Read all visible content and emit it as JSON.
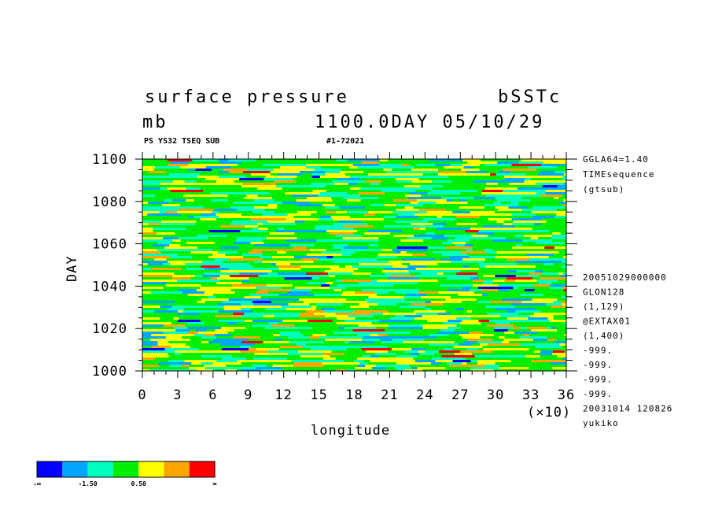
{
  "header": {
    "title_left": "surface pressure",
    "title_right": "bSSTc",
    "units": "mb",
    "date_label": "1100.0DAY 05/10/29",
    "sub_left": "PS YS32 TSEQ SUB",
    "sub_right": "#1-72021"
  },
  "side_info": {
    "top": [
      "GGLA64=1.40",
      "TIMEsequence",
      "(gtsub)"
    ],
    "bottom": [
      "20051029000000",
      "GLON128",
      "(1,129)",
      "@EXTAX01",
      "(1,400)",
      "-999.",
      "-999.",
      "-999.",
      "-999.",
      "20031014 120826",
      "yukiko"
    ]
  },
  "chart_data": {
    "type": "heatmap",
    "title": "surface pressure",
    "xlabel": "longitude",
    "ylabel": "DAY",
    "x_multiplier": "(×10)",
    "xlim": [
      0,
      36
    ],
    "ylim": [
      1000,
      1100
    ],
    "x_ticks": [
      "0",
      "3",
      "6",
      "9",
      "12",
      "15",
      "18",
      "21",
      "24",
      "27",
      "30",
      "33",
      "36"
    ],
    "y_ticks": [
      "1000",
      "1020",
      "1040",
      "1060",
      "1080",
      "1100"
    ],
    "y_tick_values": [
      1000,
      1020,
      1040,
      1060,
      1080,
      1100
    ],
    "grid": false,
    "legend": "bottom-left colorbar",
    "colorbar": {
      "colors": [
        "#0000ff",
        "#00a6ff",
        "#00ffbe",
        "#00ee00",
        "#ffff00",
        "#ffa500",
        "#ff0000"
      ],
      "labels": [
        "-∞",
        "-1.50",
        "0.50",
        "∞"
      ],
      "label_positions": [
        0,
        2,
        4,
        7
      ]
    },
    "field_description_colors": {
      "dominant": "#00ee00",
      "frequent": [
        "#ffff00",
        "#00ffbe"
      ],
      "occasional": [
        "#00a6ff",
        "#ffa500"
      ],
      "rare": [
        "#0000ff",
        "#ff0000"
      ]
    }
  }
}
